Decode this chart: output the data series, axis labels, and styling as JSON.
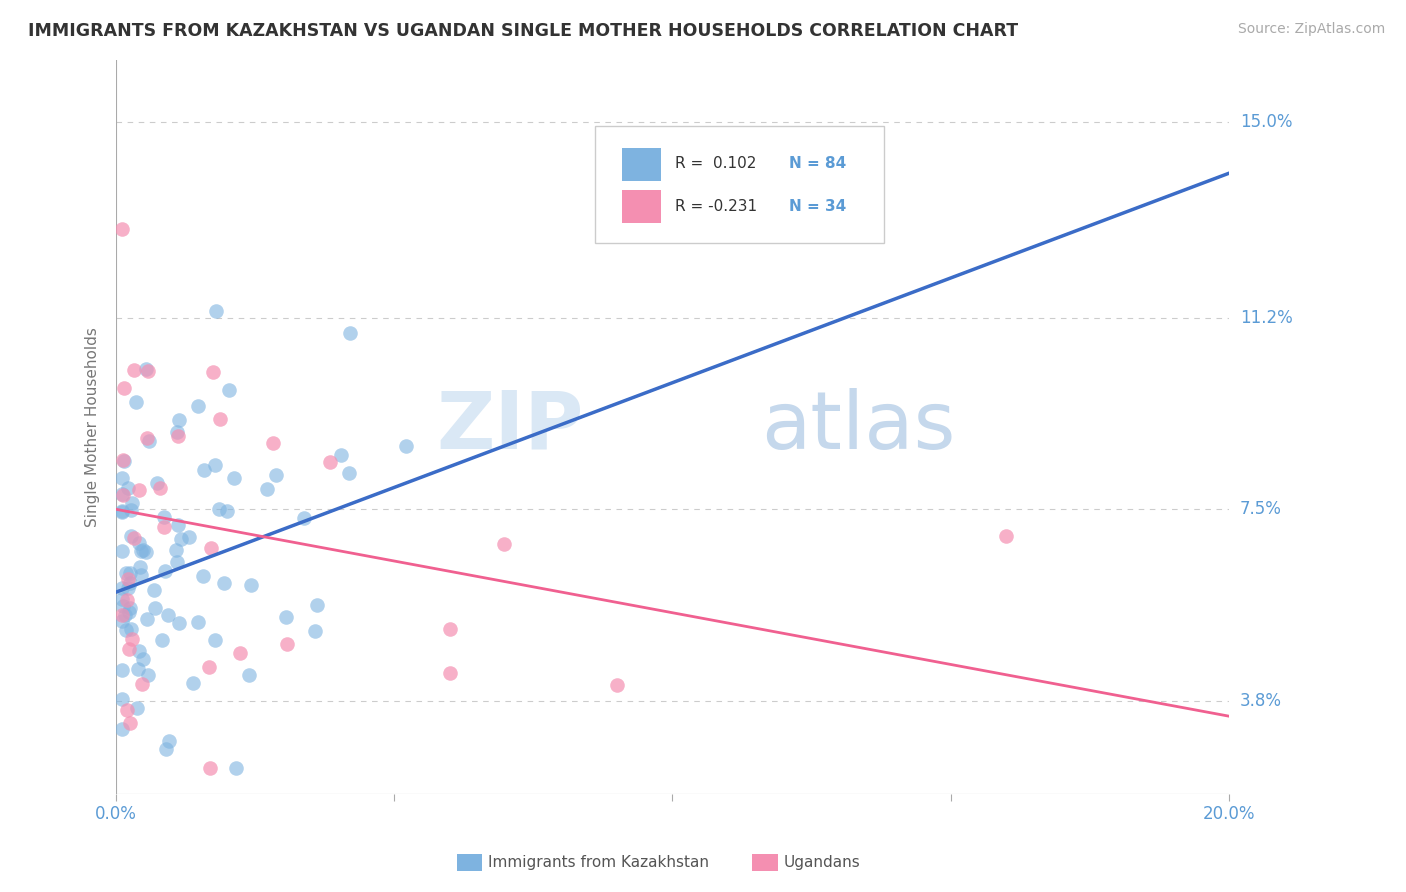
{
  "title": "IMMIGRANTS FROM KAZAKHSTAN VS UGANDAN SINGLE MOTHER HOUSEHOLDS CORRELATION CHART",
  "source": "Source: ZipAtlas.com",
  "ylabel": "Single Mother Households",
  "xlim": [
    0.0,
    0.2
  ],
  "ylim": [
    0.02,
    0.162
  ],
  "yticks": [
    0.038,
    0.075,
    0.112,
    0.15
  ],
  "ytick_labels": [
    "3.8%",
    "7.5%",
    "11.2%",
    "15.0%"
  ],
  "xticks": [
    0.0,
    0.05,
    0.1,
    0.15,
    0.2
  ],
  "xtick_labels": [
    "0.0%",
    "",
    "",
    "",
    "20.0%"
  ],
  "blue_color": "#7EB3E0",
  "blue_solid_color": "#3B6CC7",
  "pink_color": "#F48FB1",
  "pink_trend_color": "#F06090",
  "blue_dashed_color": "#7EB3E0",
  "title_color": "#333333",
  "label_color": "#5B9BD5",
  "grid_color": "#CCCCCC",
  "blue_trend_start_x": 0.0,
  "blue_trend_start_y": 0.059,
  "blue_trend_end_x": 0.2,
  "blue_trend_end_y": 0.14,
  "pink_trend_start_x": 0.0,
  "pink_trend_start_y": 0.075,
  "pink_trend_end_x": 0.2,
  "pink_trend_end_y": 0.035
}
